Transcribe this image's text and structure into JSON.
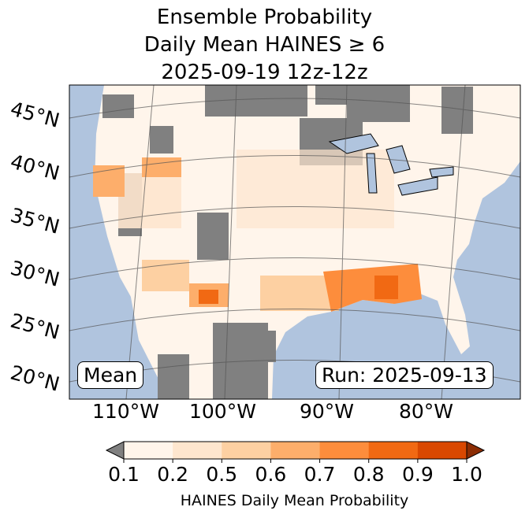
{
  "title": {
    "line1": "Ensemble Probability",
    "line2": "Daily Mean HAINES ≥ 6",
    "line3": "2025-09-19 12z-12z"
  },
  "map": {
    "lat_labels": [
      "45°N",
      "40°N",
      "35°N",
      "30°N",
      "25°N",
      "20°N"
    ],
    "lon_labels": [
      "110°W",
      "100°W",
      "90°W",
      "80°W"
    ],
    "stat_label": "Mean",
    "run_label": "Run: 2025-09-13",
    "colors": {
      "ocean": "#b0c4de",
      "missing": "#808080"
    }
  },
  "colorbar": {
    "ticks": [
      "0.1",
      "0.2",
      "0.5",
      "0.6",
      "0.7",
      "0.8",
      "0.9",
      "1.0"
    ],
    "colors": [
      "#fff5eb",
      "#fee6ce",
      "#fdd0a2",
      "#fdae6b",
      "#fd8d3c",
      "#f16913",
      "#d94801"
    ],
    "under_color": "#808080",
    "over_color": "#8c2d04",
    "label": "HAINES Daily Mean Probability"
  }
}
